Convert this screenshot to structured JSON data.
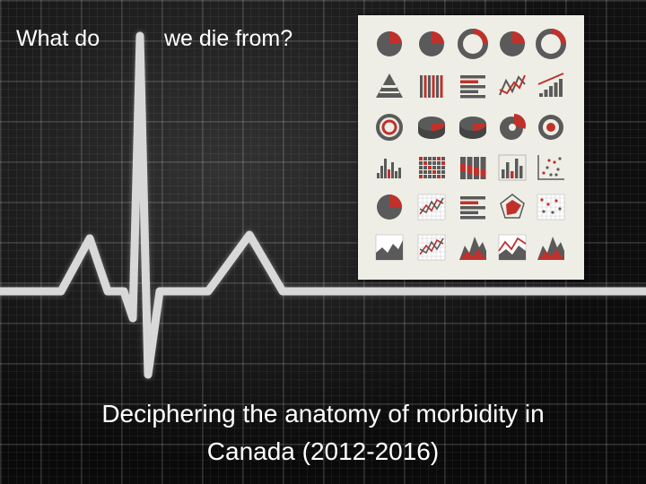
{
  "slide": {
    "title_left": "What do",
    "title_right": "we die from?",
    "subtitle_line1": "Deciphering the anatomy of morbidity in",
    "subtitle_line2": "Canada (2012-2016)"
  },
  "colors": {
    "background": "#0e0e0e",
    "ekg_line": "#d8d8d8",
    "text": "#ffffff",
    "panel_background": "#eeeee6",
    "icon_gray": "#5a5a5a",
    "icon_red": "#c0312b"
  },
  "icon_panel": {
    "rows": [
      [
        "pie-chart-icon",
        "pie-chart-icon",
        "donut-chart-icon",
        "pie-chart-icon",
        "donut-chart-icon"
      ],
      [
        "pyramid-chart-icon",
        "vertical-bar-chart-icon",
        "horizontal-bar-chart-icon",
        "line-chart-icon",
        "trend-bar-chart-icon"
      ],
      [
        "ring-chart-icon",
        "3d-pie-chart-icon",
        "3d-pie-chart-icon",
        "exploded-pie-chart-icon",
        "target-chart-icon"
      ],
      [
        "histogram-icon",
        "heatmap-grid-icon",
        "stacked-bar-chart-icon",
        "bar-chart-icon",
        "scatter-plot-icon"
      ],
      [
        "pie-chart-icon",
        "line-grid-chart-icon",
        "horizontal-bar-chart-icon",
        "radar-chart-icon",
        "scatter-grid-icon"
      ],
      [
        "area-chart-icon",
        "line-grid-chart-icon",
        "mountain-chart-icon",
        "area-line-chart-icon",
        "mountain-chart-icon"
      ]
    ]
  }
}
